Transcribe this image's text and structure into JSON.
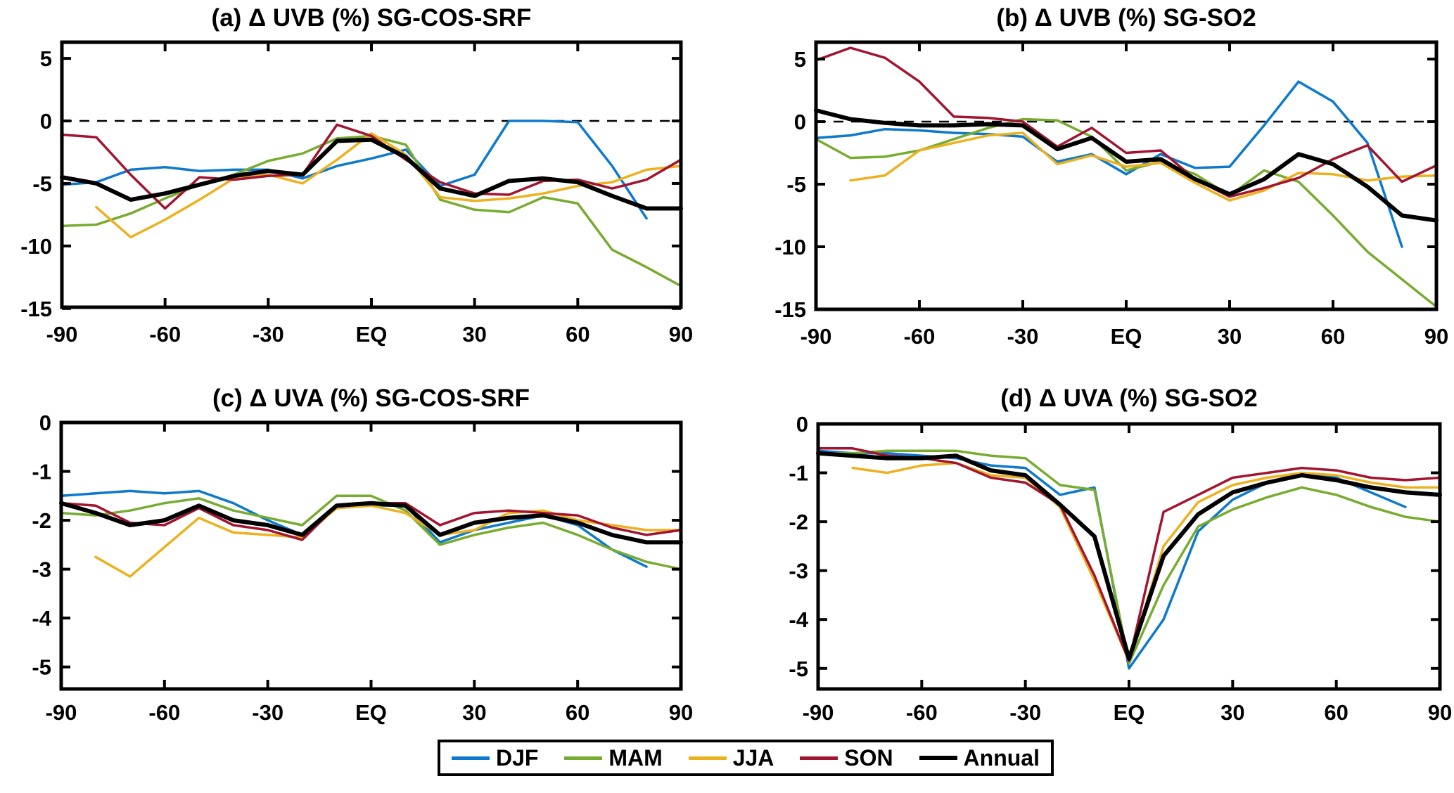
{
  "figure": {
    "background": "#ffffff",
    "legend_position": "bottom-center"
  },
  "chart_data": [
    {
      "id": "a",
      "type": "line",
      "title": "(a) Δ UVB (%) SG-COS-SRF",
      "xlabel": "",
      "ylabel": "",
      "xlim": [
        -90,
        90
      ],
      "ylim": [
        -14.9,
        6.3
      ],
      "grid": false,
      "zero_line_dashed": true,
      "x": [
        -90,
        -80,
        -70,
        -60,
        -50,
        -40,
        -30,
        -20,
        -10,
        0,
        10,
        20,
        30,
        40,
        50,
        60,
        70,
        80,
        90
      ],
      "xtick_values": [
        -90,
        -60,
        -30,
        0,
        30,
        60,
        90
      ],
      "xtick_labels": [
        "-90",
        "-60",
        "-30",
        "EQ",
        "30",
        "60",
        "90"
      ],
      "ytick_values": [
        5,
        0,
        -5,
        -10,
        -15
      ],
      "ytick_labels": [
        "5",
        "0",
        "-5",
        "-10",
        "-15"
      ],
      "series": [
        {
          "name": "DJF",
          "color": "#0d79cd",
          "values": [
            -5.1,
            -4.9,
            -3.9,
            -3.7,
            -4.0,
            -3.9,
            -3.9,
            -4.6,
            -3.6,
            -3.0,
            -2.3,
            -5.2,
            -4.3,
            0.0,
            0.0,
            -0.1,
            -3.6,
            -7.8,
            null
          ]
        },
        {
          "name": "MAM",
          "color": "#77ac30",
          "values": [
            -8.4,
            -8.3,
            -7.4,
            -6.2,
            -5.1,
            -4.3,
            -3.2,
            -2.6,
            -1.4,
            -1.2,
            -1.9,
            -6.3,
            -7.1,
            -7.3,
            -6.1,
            -6.6,
            -10.3,
            -11.7,
            -13.2
          ]
        },
        {
          "name": "JJA",
          "color": "#edb120",
          "values": [
            null,
            -6.9,
            -9.3,
            -7.9,
            -6.3,
            -4.6,
            -4.3,
            -5.0,
            -3.1,
            -1.0,
            -2.7,
            -6.1,
            -6.4,
            -6.2,
            -5.8,
            -5.2,
            -4.9,
            -3.9,
            -3.6
          ]
        },
        {
          "name": "SON",
          "color": "#a2142f",
          "values": [
            -1.1,
            -1.3,
            -4.3,
            -7.0,
            -4.5,
            -4.7,
            -4.4,
            -4.3,
            -0.3,
            -1.2,
            -3.1,
            -4.9,
            -5.8,
            -5.9,
            -4.8,
            -4.7,
            -5.4,
            -4.7,
            -3.1
          ]
        },
        {
          "name": "Annual",
          "color": "#000000",
          "values": [
            -4.5,
            -5.0,
            -6.3,
            -5.8,
            -5.1,
            -4.4,
            -4.0,
            -4.3,
            -1.6,
            -1.5,
            -2.9,
            -5.4,
            -6.0,
            -4.8,
            -4.6,
            -4.9,
            -6.0,
            -7.0,
            -7.0
          ]
        }
      ]
    },
    {
      "id": "b",
      "type": "line",
      "title": "(b) Δ UVB (%) SG-SO2",
      "xlabel": "",
      "ylabel": "",
      "xlim": [
        -90,
        90
      ],
      "ylim": [
        -15.0,
        6.35
      ],
      "grid": false,
      "zero_line_dashed": true,
      "x": [
        -90,
        -80,
        -70,
        -60,
        -50,
        -40,
        -30,
        -20,
        -10,
        0,
        10,
        20,
        30,
        40,
        50,
        60,
        70,
        80,
        90
      ],
      "xtick_values": [
        -90,
        -60,
        -30,
        0,
        30,
        60,
        90
      ],
      "xtick_labels": [
        "-90",
        "-60",
        "-30",
        "EQ",
        "30",
        "60",
        "90"
      ],
      "ytick_values": [
        5,
        0,
        -5,
        -10,
        -15
      ],
      "ytick_labels": [
        "5",
        "0",
        "-5",
        "-10",
        "-15"
      ],
      "series": [
        {
          "name": "DJF",
          "color": "#0d79cd",
          "values": [
            -1.3,
            -1.1,
            -0.6,
            -0.7,
            -0.9,
            -1.0,
            -1.2,
            -3.2,
            -2.6,
            -4.2,
            -2.6,
            -3.7,
            -3.6,
            -0.3,
            3.2,
            1.6,
            -1.7,
            -10.0,
            null
          ]
        },
        {
          "name": "MAM",
          "color": "#77ac30",
          "values": [
            -1.4,
            -2.9,
            -2.8,
            -2.3,
            -1.4,
            -0.5,
            0.2,
            0.1,
            -1.2,
            -3.9,
            -3.2,
            -4.2,
            -5.9,
            -3.9,
            -4.8,
            -7.5,
            -10.4,
            -12.6,
            -14.8
          ]
        },
        {
          "name": "JJA",
          "color": "#edb120",
          "values": [
            null,
            -4.7,
            -4.3,
            -2.3,
            -1.7,
            -1.1,
            -0.9,
            -3.4,
            -2.7,
            -3.6,
            -3.3,
            -4.9,
            -6.3,
            -5.5,
            -4.1,
            -4.2,
            -4.7,
            -4.4,
            -4.3
          ]
        },
        {
          "name": "SON",
          "color": "#a2142f",
          "values": [
            4.9,
            5.9,
            5.1,
            3.2,
            0.4,
            0.3,
            0.0,
            -2.0,
            -0.5,
            -2.5,
            -2.3,
            -4.6,
            -6.0,
            -5.3,
            -4.5,
            -3.0,
            -1.9,
            -4.8,
            -3.5
          ]
        },
        {
          "name": "Annual",
          "color": "#000000",
          "values": [
            0.9,
            0.2,
            -0.1,
            -0.3,
            -0.3,
            -0.2,
            -0.3,
            -2.2,
            -1.3,
            -3.2,
            -3.0,
            -4.6,
            -5.8,
            -4.6,
            -2.6,
            -3.4,
            -5.2,
            -7.5,
            -7.9
          ]
        }
      ]
    },
    {
      "id": "c",
      "type": "line",
      "title": "(c) Δ UVA (%) SG-COS-SRF",
      "xlabel": "",
      "ylabel": "",
      "xlim": [
        -90,
        90
      ],
      "ylim": [
        -5.45,
        0
      ],
      "grid": false,
      "zero_line_dashed": false,
      "x": [
        -90,
        -80,
        -70,
        -60,
        -50,
        -40,
        -30,
        -20,
        -10,
        0,
        10,
        20,
        30,
        40,
        50,
        60,
        70,
        80,
        90
      ],
      "xtick_values": [
        -90,
        -60,
        -30,
        0,
        30,
        60,
        90
      ],
      "xtick_labels": [
        "-90",
        "-60",
        "-30",
        "EQ",
        "30",
        "60",
        "90"
      ],
      "ytick_values": [
        0,
        -1,
        -2,
        -3,
        -4,
        -5
      ],
      "ytick_labels": [
        "0",
        "-1",
        "-2",
        "-3",
        "-4",
        "-5"
      ],
      "series": [
        {
          "name": "DJF",
          "color": "#0d79cd",
          "values": [
            -1.5,
            -1.45,
            -1.4,
            -1.45,
            -1.4,
            -1.65,
            -2.0,
            -2.3,
            -1.75,
            -1.7,
            -1.7,
            -2.45,
            -2.2,
            -2.05,
            -1.9,
            -2.1,
            -2.6,
            -2.95,
            null
          ]
        },
        {
          "name": "MAM",
          "color": "#77ac30",
          "values": [
            -1.85,
            -1.9,
            -1.8,
            -1.65,
            -1.55,
            -1.8,
            -1.95,
            -2.1,
            -1.5,
            -1.5,
            -1.8,
            -2.5,
            -2.3,
            -2.15,
            -2.05,
            -2.3,
            -2.6,
            -2.85,
            -3.0
          ]
        },
        {
          "name": "JJA",
          "color": "#edb120",
          "values": [
            null,
            -2.75,
            -3.15,
            -2.55,
            -1.95,
            -2.25,
            -2.3,
            -2.35,
            -1.75,
            -1.7,
            -1.85,
            -2.3,
            -2.2,
            -1.85,
            -1.8,
            -2.0,
            -2.1,
            -2.2,
            -2.2
          ]
        },
        {
          "name": "SON",
          "color": "#a2142f",
          "values": [
            -1.65,
            -1.7,
            -2.05,
            -2.1,
            -1.75,
            -2.1,
            -2.2,
            -2.4,
            -1.7,
            -1.65,
            -1.65,
            -2.1,
            -1.85,
            -1.8,
            -1.85,
            -1.9,
            -2.15,
            -2.3,
            -2.2
          ]
        },
        {
          "name": "Annual",
          "color": "#000000",
          "values": [
            -1.65,
            -1.85,
            -2.1,
            -2.0,
            -1.7,
            -2.0,
            -2.1,
            -2.3,
            -1.7,
            -1.65,
            -1.7,
            -2.3,
            -2.05,
            -1.95,
            -1.9,
            -2.05,
            -2.3,
            -2.45,
            -2.45
          ]
        }
      ]
    },
    {
      "id": "d",
      "type": "line",
      "title": "(d) Δ UVA (%) SG-SO2",
      "xlabel": "",
      "ylabel": "",
      "xlim": [
        -90,
        90
      ],
      "ylim": [
        -5.42,
        0
      ],
      "grid": false,
      "zero_line_dashed": false,
      "x": [
        -90,
        -80,
        -70,
        -60,
        -50,
        -40,
        -30,
        -20,
        -10,
        0,
        10,
        20,
        30,
        40,
        50,
        60,
        70,
        80,
        90
      ],
      "xtick_values": [
        -90,
        -60,
        -30,
        0,
        30,
        60,
        90
      ],
      "xtick_labels": [
        "-90",
        "-60",
        "-30",
        "EQ",
        "30",
        "60",
        "90"
      ],
      "ytick_values": [
        0,
        -1,
        -2,
        -3,
        -4,
        -5
      ],
      "ytick_labels": [
        "0",
        "-1",
        "-2",
        "-3",
        "-4",
        "-5"
      ],
      "series": [
        {
          "name": "DJF",
          "color": "#0d79cd",
          "values": [
            -0.55,
            -0.6,
            -0.6,
            -0.65,
            -0.7,
            -0.85,
            -0.9,
            -1.45,
            -1.3,
            -5.0,
            -4.0,
            -2.2,
            -1.55,
            -1.2,
            -1.0,
            -1.1,
            -1.4,
            -1.7,
            null
          ]
        },
        {
          "name": "MAM",
          "color": "#77ac30",
          "values": [
            -0.6,
            -0.6,
            -0.55,
            -0.55,
            -0.55,
            -0.65,
            -0.7,
            -1.25,
            -1.35,
            -4.9,
            -3.3,
            -2.1,
            -1.75,
            -1.5,
            -1.3,
            -1.45,
            -1.7,
            -1.9,
            -2.0
          ]
        },
        {
          "name": "JJA",
          "color": "#edb120",
          "values": [
            null,
            -0.9,
            -1.0,
            -0.85,
            -0.8,
            -1.05,
            -1.1,
            -1.7,
            -3.2,
            -4.85,
            -2.5,
            -1.6,
            -1.25,
            -1.1,
            -1.0,
            -1.05,
            -1.2,
            -1.3,
            -1.3
          ]
        },
        {
          "name": "SON",
          "color": "#a2142f",
          "values": [
            -0.5,
            -0.5,
            -0.65,
            -0.7,
            -0.8,
            -1.1,
            -1.2,
            -1.65,
            -3.1,
            -4.85,
            -1.8,
            -1.45,
            -1.1,
            -1.0,
            -0.9,
            -0.95,
            -1.1,
            -1.15,
            -1.1
          ]
        },
        {
          "name": "Annual",
          "color": "#000000",
          "values": [
            -0.6,
            -0.65,
            -0.7,
            -0.7,
            -0.65,
            -0.95,
            -1.05,
            -1.65,
            -2.3,
            -4.8,
            -2.7,
            -1.85,
            -1.4,
            -1.2,
            -1.05,
            -1.15,
            -1.3,
            -1.4,
            -1.45
          ]
        }
      ]
    }
  ]
}
